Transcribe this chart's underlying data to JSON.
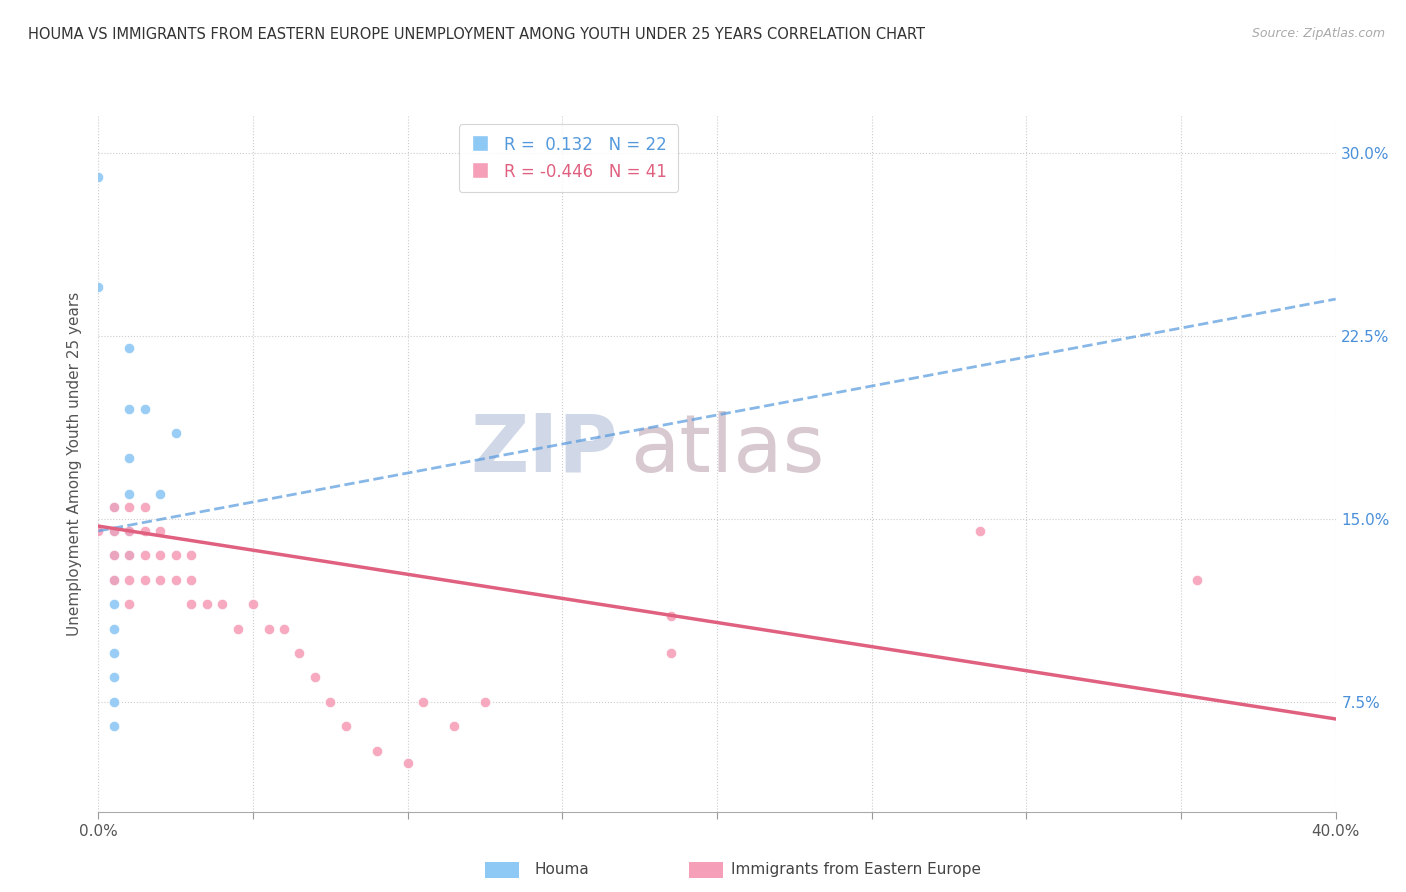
{
  "title": "HOUMA VS IMMIGRANTS FROM EASTERN EUROPE UNEMPLOYMENT AMONG YOUTH UNDER 25 YEARS CORRELATION CHART",
  "source": "Source: ZipAtlas.com",
  "ylabel": "Unemployment Among Youth under 25 years",
  "yticks": [
    "7.5%",
    "15.0%",
    "22.5%",
    "30.0%"
  ],
  "ytick_vals": [
    0.075,
    0.15,
    0.225,
    0.3
  ],
  "xlim": [
    0.0,
    0.4
  ],
  "ylim": [
    0.03,
    0.315
  ],
  "legend_blue_r": "0.132",
  "legend_blue_n": "22",
  "legend_pink_r": "-0.446",
  "legend_pink_n": "41",
  "blue_color": "#8ec8f5",
  "pink_color": "#f5a0b8",
  "trendline_blue_color": "#5599dd",
  "trendline_pink_color": "#e06080",
  "watermark_zip": "ZIP",
  "watermark_atlas": "atlas",
  "houma_label": "Houma",
  "immigrants_label": "Immigrants from Eastern Europe",
  "houma_points": [
    [
      0.0,
      0.29
    ],
    [
      0.0,
      0.245
    ],
    [
      0.005,
      0.145
    ],
    [
      0.005,
      0.155
    ],
    [
      0.005,
      0.145
    ],
    [
      0.005,
      0.135
    ],
    [
      0.005,
      0.125
    ],
    [
      0.005,
      0.115
    ],
    [
      0.005,
      0.105
    ],
    [
      0.005,
      0.095
    ],
    [
      0.005,
      0.085
    ],
    [
      0.005,
      0.075
    ],
    [
      0.005,
      0.065
    ],
    [
      0.01,
      0.22
    ],
    [
      0.01,
      0.195
    ],
    [
      0.01,
      0.175
    ],
    [
      0.01,
      0.16
    ],
    [
      0.01,
      0.145
    ],
    [
      0.01,
      0.135
    ],
    [
      0.015,
      0.195
    ],
    [
      0.02,
      0.16
    ],
    [
      0.025,
      0.185
    ]
  ],
  "immigrants_points": [
    [
      0.0,
      0.145
    ],
    [
      0.005,
      0.155
    ],
    [
      0.005,
      0.145
    ],
    [
      0.005,
      0.135
    ],
    [
      0.005,
      0.125
    ],
    [
      0.01,
      0.155
    ],
    [
      0.01,
      0.145
    ],
    [
      0.01,
      0.135
    ],
    [
      0.01,
      0.125
    ],
    [
      0.01,
      0.115
    ],
    [
      0.015,
      0.155
    ],
    [
      0.015,
      0.145
    ],
    [
      0.015,
      0.135
    ],
    [
      0.015,
      0.125
    ],
    [
      0.02,
      0.145
    ],
    [
      0.02,
      0.135
    ],
    [
      0.02,
      0.125
    ],
    [
      0.025,
      0.135
    ],
    [
      0.025,
      0.125
    ],
    [
      0.03,
      0.135
    ],
    [
      0.03,
      0.125
    ],
    [
      0.03,
      0.115
    ],
    [
      0.035,
      0.115
    ],
    [
      0.04,
      0.115
    ],
    [
      0.045,
      0.105
    ],
    [
      0.05,
      0.115
    ],
    [
      0.055,
      0.105
    ],
    [
      0.06,
      0.105
    ],
    [
      0.065,
      0.095
    ],
    [
      0.07,
      0.085
    ],
    [
      0.075,
      0.075
    ],
    [
      0.08,
      0.065
    ],
    [
      0.09,
      0.055
    ],
    [
      0.1,
      0.05
    ],
    [
      0.105,
      0.075
    ],
    [
      0.115,
      0.065
    ],
    [
      0.125,
      0.075
    ],
    [
      0.185,
      0.095
    ],
    [
      0.185,
      0.11
    ],
    [
      0.285,
      0.145
    ],
    [
      0.355,
      0.125
    ]
  ],
  "blue_trend_x": [
    0.0,
    0.4
  ],
  "blue_trend_y": [
    0.145,
    0.24
  ],
  "pink_trend_x": [
    0.0,
    0.4
  ],
  "pink_trend_y": [
    0.147,
    0.068
  ]
}
